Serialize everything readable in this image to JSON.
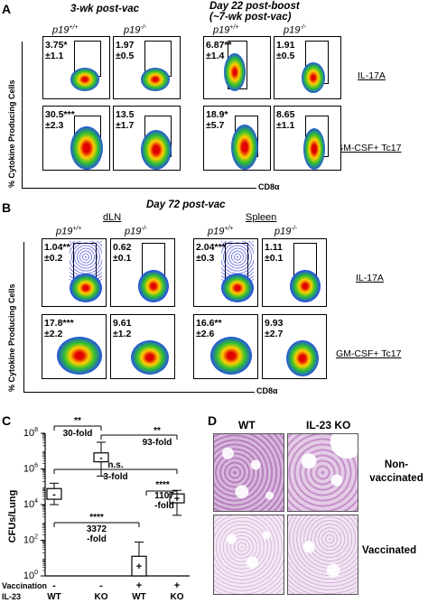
{
  "panel_a": {
    "letter": "A",
    "title_left": "3-wk post-vac",
    "title_right_1": "Day 22 post-boost",
    "title_right_2": "(~7-wk post-vac)",
    "genotype_wt": "p19",
    "genotype_wt_sup": "+/+",
    "genotype_ko": "p19",
    "genotype_ko_sup": "-/-",
    "ylabel": "% Cytokine Producing Cells",
    "xlabel": "CD8α",
    "row_labels": [
      "IL-17A",
      "GM-CSF+ Tc17"
    ],
    "stats_row1": [
      "3.75*\n±1.1",
      "1.97\n±0.5",
      "6.87**\n±1.4",
      "1.91\n±0.5"
    ],
    "stats_row2": [
      "30.5***\n±2.3",
      "13.5\n±1.7",
      "18.9*\n±5.7",
      "8.65\n±1.1"
    ]
  },
  "panel_b": {
    "letter": "B",
    "title": "Day 72 post-vac",
    "group_left": "dLN",
    "group_right": "Spleen",
    "genotype_wt": "p19",
    "genotype_wt_sup": "+/+",
    "genotype_ko": "p19",
    "genotype_ko_sup": "-/-",
    "ylabel": "% Cytokine Producing Cells",
    "xlabel": "CD8α",
    "row_labels": [
      "IL-17A",
      "GM-CSF+ Tc17"
    ],
    "stats_row1": [
      "1.04**\n±0.2",
      "0.62\n±0.1",
      "2.04***\n±0.3",
      "1.11\n±0.1"
    ],
    "stats_row2": [
      "17.8***\n±2.2",
      "9.61\n±1.2",
      "16.6**\n±2.6",
      "9.93\n±2.7"
    ]
  },
  "panel_c": {
    "letter": "C",
    "chart_data": {
      "type": "box",
      "ylabel": "CFUs/Lung",
      "yscale": "log",
      "ylim": [
        1,
        100000000
      ],
      "yticks": [
        "10^0",
        "10^2",
        "10^4",
        "10^6",
        "10^8"
      ],
      "row_labels": [
        "Vaccination",
        "IL-23"
      ],
      "groups": [
        {
          "vaccination": "-",
          "il23": "WT",
          "median_log10": 4.6,
          "q1_log10": 4.3,
          "q3_log10": 4.9,
          "min_log10": 4.0,
          "max_log10": 5.2,
          "box_text": "-"
        },
        {
          "vaccination": "-",
          "il23": "KO",
          "median_log10": 6.6,
          "q1_log10": 6.4,
          "q3_log10": 6.9,
          "min_log10": 5.6,
          "max_log10": 7.5,
          "box_text": "-"
        },
        {
          "vaccination": "+",
          "il23": "WT",
          "median_log10": 0.6,
          "q1_log10": 0.0,
          "q3_log10": 1.1,
          "min_log10": 0.0,
          "max_log10": 1.9,
          "box_text": "+"
        },
        {
          "vaccination": "+",
          "il23": "KO",
          "median_log10": 4.4,
          "q1_log10": 4.1,
          "q3_log10": 4.6,
          "min_log10": 3.4,
          "max_log10": 4.8,
          "box_text": "+"
        }
      ],
      "annotations": [
        {
          "sig": "**",
          "fold": "30-fold"
        },
        {
          "sig": "**",
          "fold": "93-fold"
        },
        {
          "sig": "n.s.",
          "fold": "3-fold"
        },
        {
          "sig": "****",
          "fold": "1107\n-fold"
        },
        {
          "sig": "****",
          "fold": "3372\n-fold"
        }
      ]
    }
  },
  "panel_d": {
    "letter": "D",
    "col_labels": [
      "WT",
      "IL-23 KO"
    ],
    "row_labels": [
      "Non-\nvaccinated",
      "Vaccinated"
    ]
  }
}
